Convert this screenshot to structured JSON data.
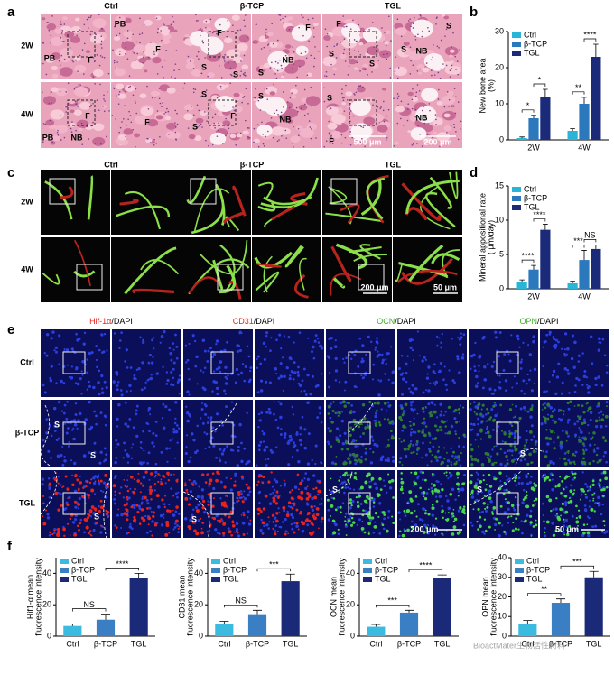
{
  "figure": {
    "panel_letters": [
      "a",
      "b",
      "c",
      "d",
      "e",
      "f"
    ],
    "panel_a": {
      "columns": [
        "Ctrl",
        "β-TCP",
        "TGL"
      ],
      "rows": [
        "2W",
        "4W"
      ],
      "labels": [
        "PB",
        "F",
        "PB",
        "F",
        "F",
        "S",
        "S",
        "F",
        "NB",
        "S",
        "F",
        "S",
        "S",
        "S",
        "S",
        "NB",
        "PB",
        "NB",
        "F",
        "F",
        "S",
        "F",
        "S",
        "S",
        "NB",
        "S",
        "F",
        "NB"
      ],
      "scale_bars": [
        "500 μm",
        "200 μm"
      ]
    },
    "panel_c": {
      "columns": [
        "Ctrl",
        "β-TCP",
        "TGL"
      ],
      "rows": [
        "2W",
        "4W"
      ],
      "scale_bars": [
        "200 μm",
        "50 μm"
      ]
    },
    "panel_e": {
      "columns": [
        {
          "marker": "Hif-1α",
          "stain": "/DAPI",
          "color": "#e8231c"
        },
        {
          "marker": "CD31",
          "stain": "/DAPI",
          "color": "#e8231c"
        },
        {
          "marker": "OCN",
          "stain": "/DAPI",
          "color": "#3fae2a"
        },
        {
          "marker": "OPN",
          "stain": "/DAPI",
          "color": "#3fae2a"
        }
      ],
      "rows": [
        "Ctrl",
        "β-TCP",
        "TGL"
      ],
      "labels": [
        "S",
        "S",
        "S",
        "S",
        "S",
        "S",
        "S"
      ],
      "scale_bars": [
        "200 μm",
        "50 μm"
      ]
    },
    "watermark": "BioactMater生物活性材料"
  },
  "chart_data": [
    {
      "type": "bar",
      "ylabel": [
        "New bone area",
        "(%)"
      ],
      "categories": [
        "2W",
        "4W"
      ],
      "ylim": [
        0,
        30
      ],
      "yticks": [
        0,
        10,
        20,
        30
      ],
      "series": [
        {
          "name": "Ctrl",
          "color": "#29b5d8",
          "values": [
            0.5,
            2.5
          ],
          "errors": [
            0.3,
            0.6
          ]
        },
        {
          "name": "β-TCP",
          "color": "#2b78bd",
          "values": [
            6,
            10
          ],
          "errors": [
            0.8,
            1.8
          ]
        },
        {
          "name": "TGL",
          "color": "#1b2b7a",
          "values": [
            12,
            23
          ],
          "errors": [
            2,
            3.5
          ]
        }
      ],
      "significance": [
        "*",
        "*",
        "**",
        "****"
      ]
    },
    {
      "type": "bar",
      "ylabel": [
        "Mineral appositional rate",
        "( μm/day)"
      ],
      "categories": [
        "2W",
        "4W"
      ],
      "ylim": [
        0,
        15
      ],
      "yticks": [
        0,
        5,
        10,
        15
      ],
      "series": [
        {
          "name": "Ctrl",
          "color": "#29b5d8",
          "values": [
            1.0,
            0.8
          ],
          "errors": [
            0.3,
            0.3
          ]
        },
        {
          "name": "β-TCP",
          "color": "#2b78bd",
          "values": [
            2.8,
            4.2
          ],
          "errors": [
            0.6,
            1.4
          ]
        },
        {
          "name": "TGL",
          "color": "#1b2b7a",
          "values": [
            8.6,
            5.8
          ],
          "errors": [
            0.8,
            0.6
          ]
        }
      ],
      "significance": [
        "****",
        "****",
        "***",
        "NS"
      ]
    },
    {
      "type": "bar",
      "ylabel": [
        "Hif1-α mean",
        "fluorescence intensity"
      ],
      "categories": [
        "Ctrl",
        "β-TCP",
        "TGL"
      ],
      "colors": [
        "#3bbbe0",
        "#3a7fc4",
        "#1b2a78"
      ],
      "ylim": [
        0,
        50
      ],
      "yticks": [
        0,
        20,
        40
      ],
      "values": [
        6.5,
        10.5,
        37
      ],
      "errors": [
        1.2,
        3.5,
        3
      ],
      "significance": [
        "NS",
        "****"
      ]
    },
    {
      "type": "bar",
      "ylabel": [
        "CD31 mean",
        "fluorescence intensity"
      ],
      "categories": [
        "Ctrl",
        "β-TCP",
        "TGL"
      ],
      "colors": [
        "#3bbbe0",
        "#3a7fc4",
        "#1b2a78"
      ],
      "ylim": [
        0,
        50
      ],
      "yticks": [
        0,
        20,
        40
      ],
      "values": [
        8,
        14,
        35
      ],
      "errors": [
        1.5,
        2.5,
        4.5
      ],
      "significance": [
        "NS",
        "***"
      ]
    },
    {
      "type": "bar",
      "ylabel": [
        "OCN mean",
        "fluorescence intensity"
      ],
      "categories": [
        "Ctrl",
        "β-TCP",
        "TGL"
      ],
      "colors": [
        "#3bbbe0",
        "#3a7fc4",
        "#1b2a78"
      ],
      "ylim": [
        0,
        50
      ],
      "yticks": [
        0,
        20,
        40
      ],
      "values": [
        6,
        15,
        37
      ],
      "errors": [
        1.5,
        1.5,
        2
      ],
      "significance": [
        "***",
        "****"
      ]
    },
    {
      "type": "bar",
      "ylabel": [
        "OPN mean",
        "fluorescence intensity"
      ],
      "categories": [
        "Ctrl",
        "β-TCP",
        "TGL"
      ],
      "colors": [
        "#3bbbe0",
        "#3a7fc4",
        "#1b2a78"
      ],
      "ylim": [
        0,
        40
      ],
      "yticks": [
        0,
        10,
        20,
        30,
        40
      ],
      "values": [
        6,
        17,
        30
      ],
      "errors": [
        2,
        2,
        3
      ],
      "significance": [
        "**",
        "***"
      ]
    }
  ]
}
